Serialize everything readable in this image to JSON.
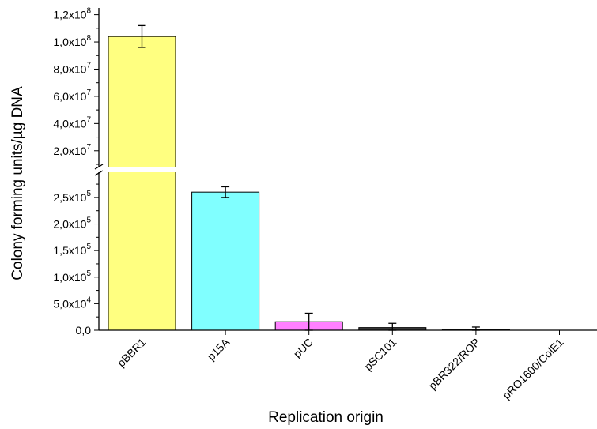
{
  "chart_data": {
    "type": "bar",
    "xlabel": "Replication origin",
    "ylabel": "Colony forming units/µg DNA",
    "categories": [
      "pBBR1",
      "p15A",
      "pUC",
      "pSC101",
      "pBR322/ROP",
      "pRO1600/ColE1"
    ],
    "values": [
      104000000,
      260000,
      16000,
      5000,
      2000,
      0
    ],
    "errors": [
      8000000,
      10000,
      16000,
      8000,
      4000,
      0
    ],
    "colors": [
      "#ffff80",
      "#80ffff",
      "#ff80ff",
      "#404040",
      "#202020",
      "#202020"
    ],
    "axis_break": true,
    "ylim_lower": [
      0,
      290000
    ],
    "ylim_upper": [
      10000000,
      125000000
    ],
    "yticks_lower": [
      {
        "value": 0,
        "label": "0,0",
        "exp": ""
      },
      {
        "value": 50000,
        "label": "5,0x10",
        "exp": "4"
      },
      {
        "value": 100000,
        "label": "1,0x10",
        "exp": "5"
      },
      {
        "value": 150000,
        "label": "1,5x10",
        "exp": "5"
      },
      {
        "value": 200000,
        "label": "2,0x10",
        "exp": "5"
      },
      {
        "value": 250000,
        "label": "2,5x10",
        "exp": "5"
      }
    ],
    "yticks_upper": [
      {
        "value": 20000000,
        "label": "2,0x10",
        "exp": "7"
      },
      {
        "value": 40000000,
        "label": "4,0x10",
        "exp": "7"
      },
      {
        "value": 60000000,
        "label": "6,0x10",
        "exp": "7"
      },
      {
        "value": 80000000,
        "label": "8,0x10",
        "exp": "7"
      },
      {
        "value": 100000000,
        "label": "1,0x10",
        "exp": "8"
      },
      {
        "value": 120000000,
        "label": "1,2x10",
        "exp": "8"
      }
    ]
  }
}
